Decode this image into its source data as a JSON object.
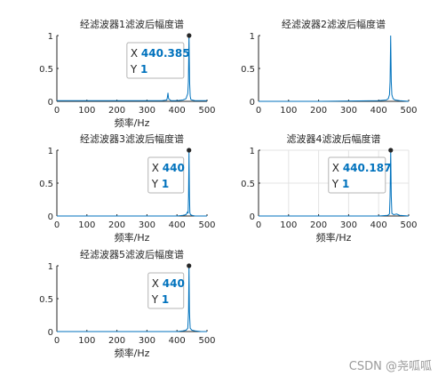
{
  "chart_data": [
    {
      "type": "line",
      "title": "经滤波器1滤波后幅度谱",
      "xlabel": "频率/Hz",
      "ylabel": "",
      "xlim": [
        0,
        500
      ],
      "ylim": [
        0,
        1
      ],
      "xticks": [
        0,
        100,
        200,
        300,
        400,
        500
      ],
      "yticks": [
        0,
        0.5,
        1
      ],
      "grid": false,
      "series": [
        {
          "x": [
            0,
            120,
            250,
            300,
            350,
            366,
            368,
            370,
            372,
            380,
            400,
            420,
            430,
            436,
            438,
            440,
            442,
            444,
            446,
            450,
            460,
            480,
            500
          ],
          "y": [
            0.01,
            0.01,
            0.01,
            0.01,
            0.01,
            0.02,
            0.06,
            0.13,
            0.04,
            0.01,
            0.01,
            0.02,
            0.04,
            0.12,
            0.3,
            1.0,
            0.3,
            0.08,
            0.03,
            0.02,
            0.01,
            0.01,
            0.01
          ]
        }
      ],
      "datatip": {
        "x_label": "X",
        "x_value": "440.385",
        "y_label": "Y",
        "y_value": "1",
        "x": 440.385,
        "y": 1
      }
    },
    {
      "type": "line",
      "title": "经滤波器2滤波后幅度谱",
      "xlabel": "",
      "ylabel": "",
      "xlim": [
        0,
        500
      ],
      "ylim": [
        0,
        1
      ],
      "xticks": [
        0,
        100,
        200,
        300,
        400,
        500
      ],
      "yticks": [
        0,
        0.5,
        1
      ],
      "grid": false,
      "series": [
        {
          "x": [
            0,
            200,
            400,
            425,
            432,
            436,
            438,
            440,
            442,
            444,
            448,
            455,
            470,
            500
          ],
          "y": [
            0.0,
            0.0,
            0.01,
            0.02,
            0.04,
            0.1,
            0.3,
            1.0,
            0.3,
            0.1,
            0.04,
            0.02,
            0.01,
            0.0
          ]
        }
      ],
      "datatip": null
    },
    {
      "type": "line",
      "title": "经滤波器3滤波后幅度谱",
      "xlabel": "频率/Hz",
      "ylabel": "",
      "xlim": [
        0,
        500
      ],
      "ylim": [
        0,
        1
      ],
      "xticks": [
        0,
        100,
        200,
        300,
        400,
        500
      ],
      "yticks": [
        0,
        0.5,
        1
      ],
      "grid": false,
      "series": [
        {
          "x": [
            0,
            200,
            400,
            420,
            430,
            435,
            437,
            438.5,
            440,
            441.5,
            443,
            445,
            450,
            460,
            480,
            500
          ],
          "y": [
            0.0,
            0.0,
            0.0,
            0.01,
            0.02,
            0.06,
            0.04,
            0.3,
            1.0,
            0.3,
            0.05,
            0.02,
            0.01,
            0.0,
            0.0,
            0.0
          ]
        }
      ],
      "datatip": {
        "x_label": "X",
        "x_value": "440",
        "y_label": "Y",
        "y_value": "1",
        "x": 440,
        "y": 1
      }
    },
    {
      "type": "line",
      "title": "滤波器4滤波后幅度谱",
      "xlabel": "频率/Hz",
      "ylabel": "",
      "xlim": [
        0,
        500
      ],
      "ylim": [
        0,
        1
      ],
      "xticks": [
        0,
        100,
        200,
        300,
        400,
        500
      ],
      "yticks": [
        0,
        0.5,
        1
      ],
      "grid": true,
      "series": [
        {
          "x": [
            0,
            200,
            400,
            430,
            436,
            438,
            440.187,
            442,
            444,
            450,
            460,
            470,
            500
          ],
          "y": [
            0.0,
            0.0,
            0.0,
            0.01,
            0.03,
            0.3,
            1.0,
            0.3,
            0.04,
            0.02,
            0.03,
            0.01,
            0.0
          ]
        }
      ],
      "datatip": {
        "x_label": "X",
        "x_value": "440.187",
        "y_label": "Y",
        "y_value": "1",
        "x": 440.187,
        "y": 1
      }
    },
    {
      "type": "line",
      "title": "经滤波器5滤波后幅度谱",
      "xlabel": "频率/Hz",
      "ylabel": "",
      "xlim": [
        0,
        500
      ],
      "ylim": [
        0,
        1
      ],
      "xticks": [
        0,
        100,
        200,
        300,
        400,
        500
      ],
      "yticks": [
        0,
        0.5,
        1
      ],
      "grid": false,
      "series": [
        {
          "x": [
            0,
            200,
            400,
            420,
            430,
            436,
            438.5,
            440,
            441.5,
            444,
            450,
            460,
            480,
            500
          ],
          "y": [
            0.0,
            0.0,
            0.0,
            0.01,
            0.02,
            0.05,
            0.3,
            1.0,
            0.3,
            0.05,
            0.02,
            0.01,
            0.0,
            0.0
          ]
        }
      ],
      "datatip": {
        "x_label": "X",
        "x_value": "440",
        "y_label": "Y",
        "y_value": "1",
        "x": 440,
        "y": 1
      }
    }
  ],
  "style": {
    "line_color": "#0072bd",
    "axis_color": "#262626",
    "grid_color": "#e3e3e3",
    "tip_box_fill": "#ffffff",
    "tip_box_border": "#b4b4b4",
    "tip_marker_color": "#262626"
  },
  "watermark": "CSDN @尧呱呱"
}
